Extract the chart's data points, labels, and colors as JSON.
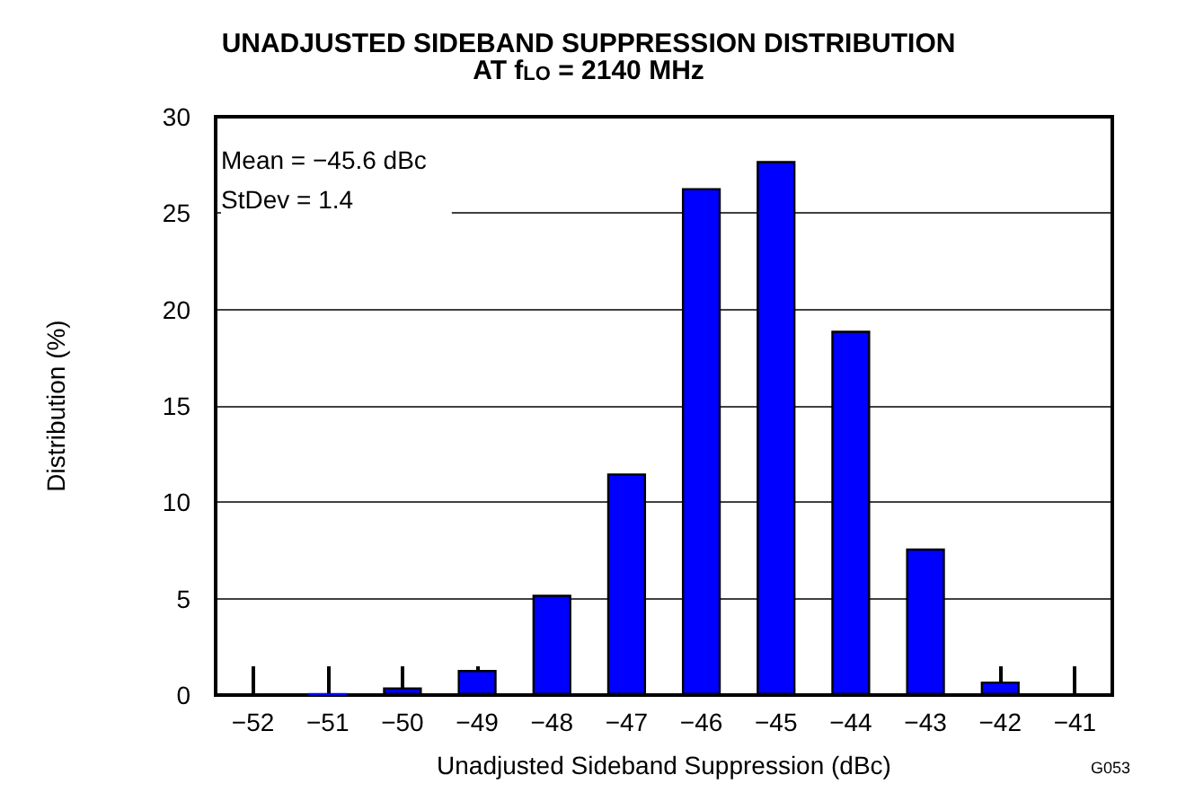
{
  "chart_data": {
    "type": "bar",
    "title": "UNADJUSTED SIDEBAND SUPPRESSION DISTRIBUTION\nAT f$_{LO}$ = 2140 MHz",
    "xlabel": "Unadjusted Sideband Suppression (dBc)",
    "ylabel": "Distribution (%)",
    "categories": [
      "−52",
      "−51",
      "−50",
      "−49",
      "−48",
      "−47",
      "−46",
      "−45",
      "−44",
      "−43",
      "−42",
      "−41"
    ],
    "values": [
      0,
      0.1,
      0.4,
      1.3,
      5.2,
      11.5,
      26.3,
      27.7,
      18.9,
      7.6,
      0.7,
      0
    ],
    "color": "#0000ff",
    "ylim": [
      0,
      30
    ],
    "yticks": [
      0,
      5,
      10,
      15,
      20,
      25,
      30
    ],
    "grid": "y",
    "annotations": [
      "Mean = −45.6 dBc\nStDev = 1.4",
      "G053"
    ]
  }
}
